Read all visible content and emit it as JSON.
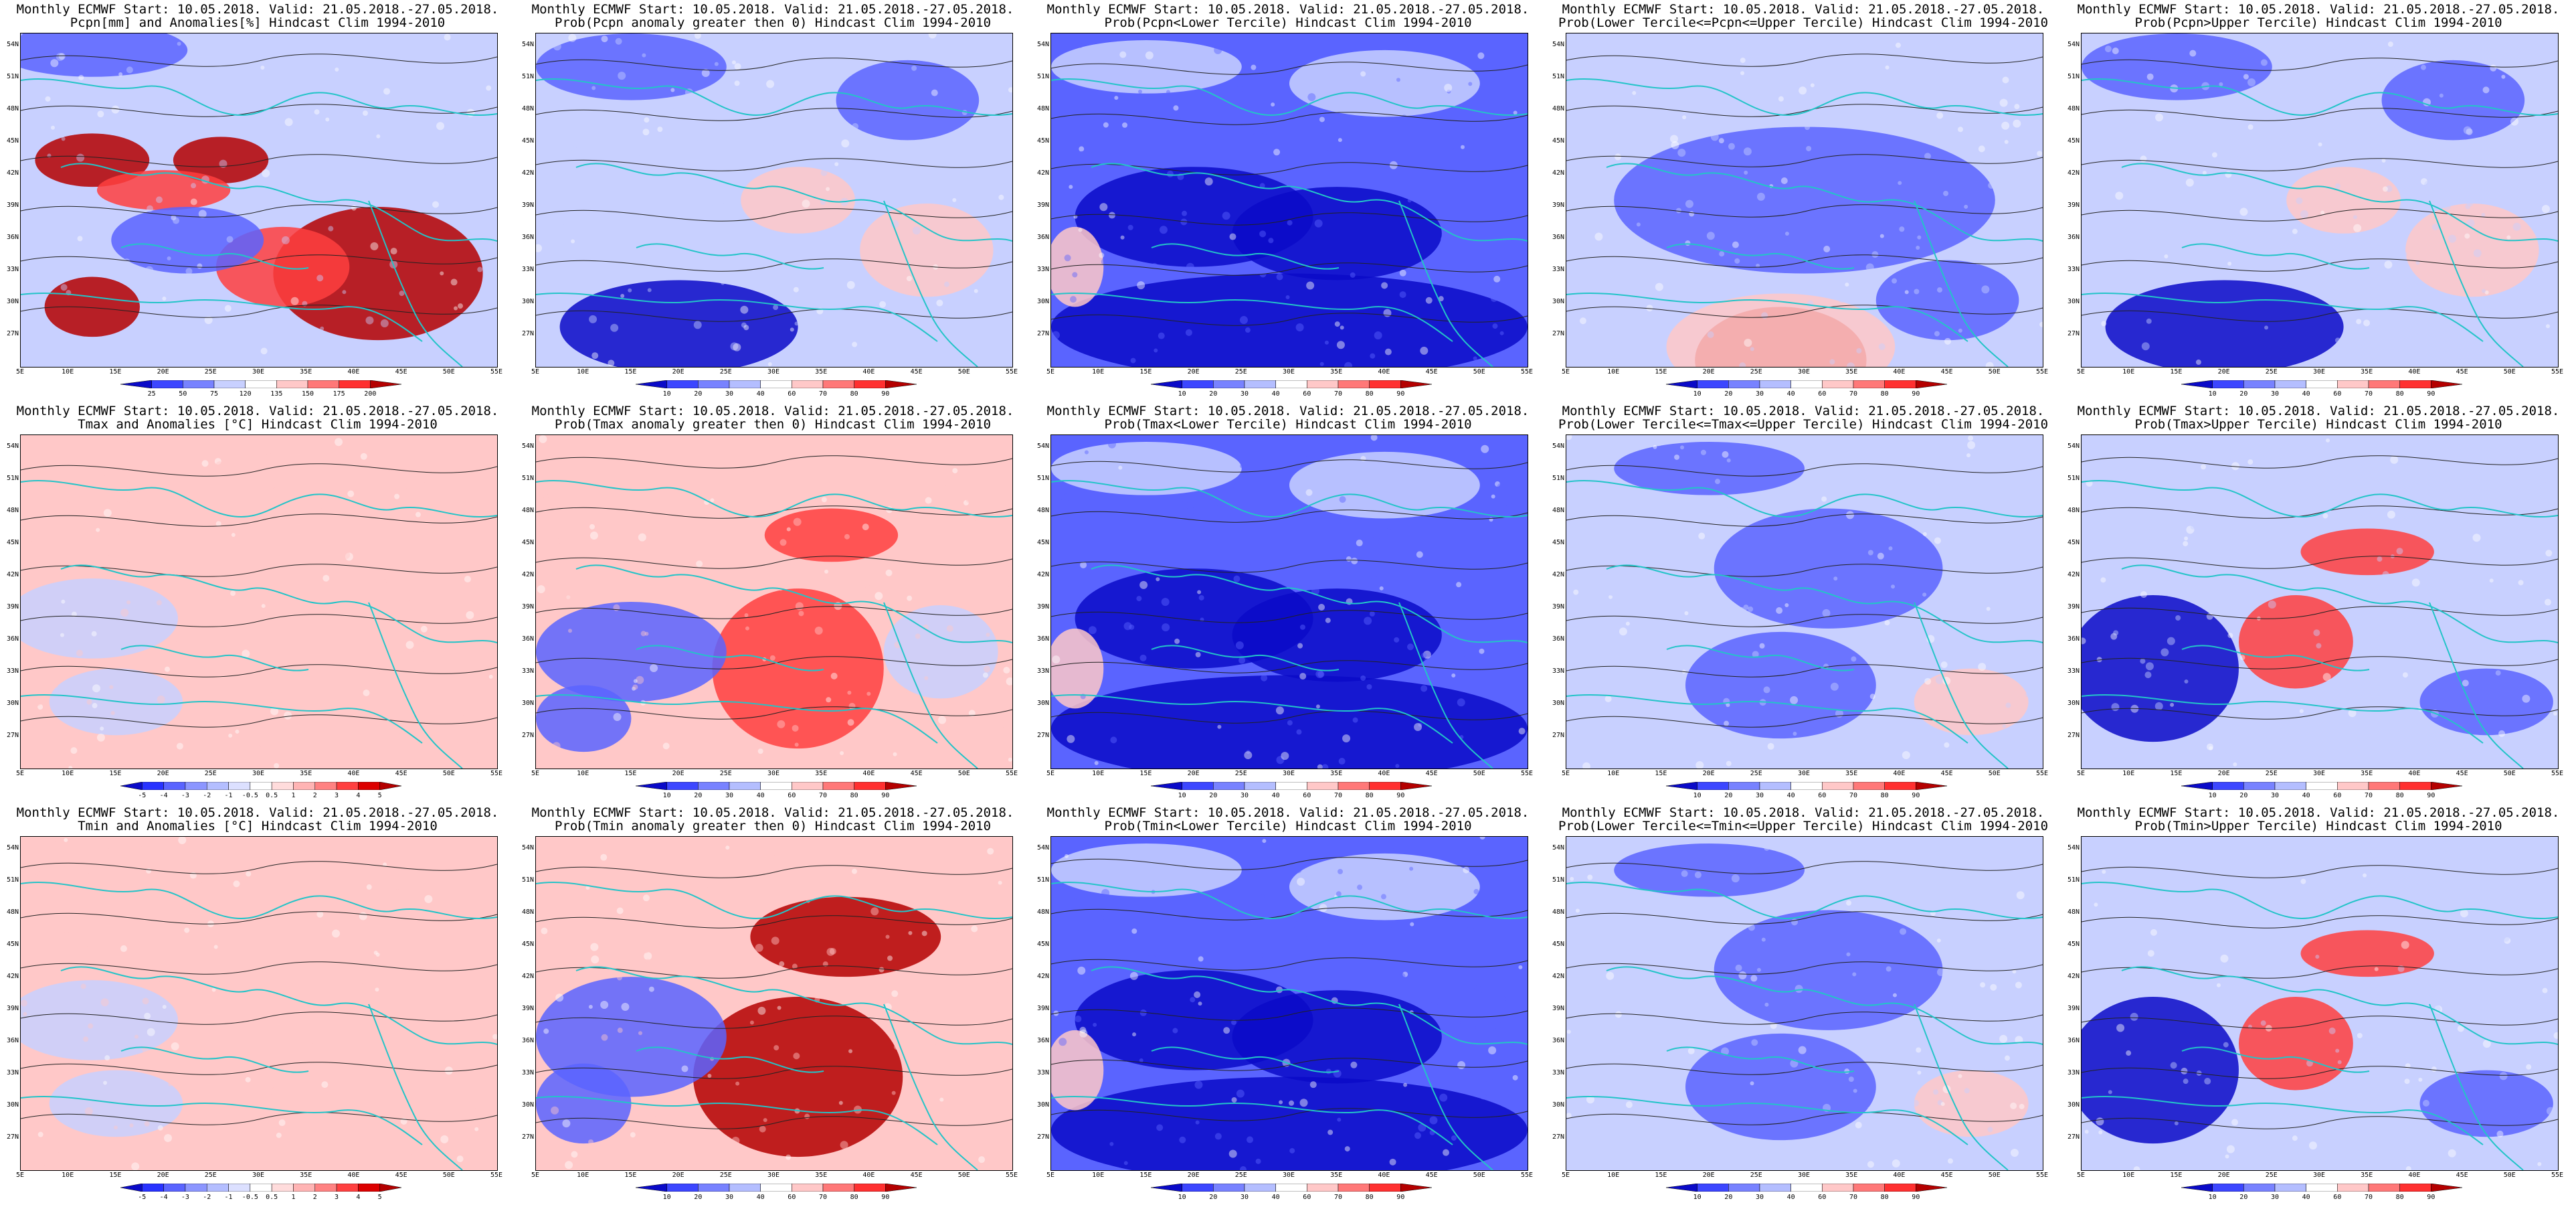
{
  "colors": {
    "frame": "#000000",
    "coast": "#23c4c8",
    "contour": "#222222",
    "blue_dark": "#0a0ac8",
    "blue_mid": "#5a64ff",
    "blue_light": "#c8d0ff",
    "red_dark": "#b40000",
    "red_mid": "#ff4040",
    "red_light": "#ffc8c8"
  },
  "axes": {
    "lat_labels": [
      "54N",
      "51N",
      "48N",
      "45N",
      "42N",
      "39N",
      "36N",
      "33N",
      "30N",
      "27N"
    ],
    "lon_labels": [
      "5E",
      "10E",
      "15E",
      "20E",
      "25E",
      "30E",
      "35E",
      "40E",
      "45E",
      "50E",
      "55E"
    ]
  },
  "colorbars": {
    "precip": {
      "labels": [
        "25",
        "50",
        "75",
        "120",
        "135",
        "150",
        "175",
        "200"
      ],
      "colors": [
        "#0a0ac8",
        "#3c46ff",
        "#7882ff",
        "#c8d0ff",
        "#ffffff",
        "#ffc8c8",
        "#ff7878",
        "#ff3030",
        "#b40000"
      ]
    },
    "prob": {
      "labels": [
        "10",
        "20",
        "30",
        "40",
        "60",
        "70",
        "80",
        "90"
      ],
      "colors": [
        "#0a0ac8",
        "#3c46ff",
        "#7882ff",
        "#b4beff",
        "#ffffff",
        "#ffc8c8",
        "#ff7878",
        "#ff3030",
        "#b40000"
      ]
    },
    "temp": {
      "labels": [
        "-5",
        "-4",
        "-3",
        "-2",
        "-1",
        "-0.5",
        "0.5",
        "1",
        "2",
        "3",
        "4",
        "5"
      ],
      "colors": [
        "#0a0ac8",
        "#2832ff",
        "#5a64ff",
        "#8c96ff",
        "#b4beff",
        "#dce0ff",
        "#ffffff",
        "#ffdcdc",
        "#ffb4b4",
        "#ff8282",
        "#ff4040",
        "#dc0000",
        "#b40000"
      ]
    }
  },
  "panels": [
    {
      "title1": "Monthly ECMWF Start: 10.05.2018. Valid: 21.05.2018.-27.05.2018.",
      "title2": "Pcpn[mm] and Anomalies[%] Hindcast Clim 1994-2010",
      "colorbar": "precip",
      "pattern": "precip_anom"
    },
    {
      "title1": "Monthly ECMWF Start: 10.05.2018. Valid: 21.05.2018.-27.05.2018.",
      "title2": "Prob(Pcpn anomaly greater then 0) Hindcast Clim 1994-2010",
      "colorbar": "prob",
      "pattern": "bluish"
    },
    {
      "title1": "Monthly ECMWF Start: 10.05.2018. Valid: 21.05.2018.-27.05.2018.",
      "title2": "Prob(Pcpn<Lower Tercile) Hindcast Clim 1994-2010",
      "colorbar": "prob",
      "pattern": "deep_blue"
    },
    {
      "title1": "Monthly ECMWF Start: 10.05.2018. Valid: 21.05.2018.-27.05.2018.",
      "title2": "Prob(Lower Tercile<=Pcpn<=Upper Tercile) Hindcast Clim 1994-2010",
      "colorbar": "prob",
      "pattern": "blue_red_south"
    },
    {
      "title1": "Monthly ECMWF Start: 10.05.2018. Valid: 21.05.2018.-27.05.2018.",
      "title2": "Prob(Pcpn>Upper Tercile) Hindcast Clim 1994-2010",
      "colorbar": "prob",
      "pattern": "bluish"
    },
    {
      "title1": "Monthly ECMWF Start: 10.05.2018. Valid: 21.05.2018.-27.05.2018.",
      "title2": "Tmax and Anomalies [°C] Hindcast Clim 1994-2010",
      "colorbar": "temp",
      "pattern": "light_red"
    },
    {
      "title1": "Monthly ECMWF Start: 10.05.2018. Valid: 21.05.2018.-27.05.2018.",
      "title2": "Prob(Tmax anomaly greater then 0) Hindcast Clim 1994-2010",
      "colorbar": "prob",
      "pattern": "red_east"
    },
    {
      "title1": "Monthly ECMWF Start: 10.05.2018. Valid: 21.05.2018.-27.05.2018.",
      "title2": "Prob(Tmax<Lower Tercile) Hindcast Clim 1994-2010",
      "colorbar": "prob",
      "pattern": "deep_blue"
    },
    {
      "title1": "Monthly ECMWF Start: 10.05.2018. Valid: 21.05.2018.-27.05.2018.",
      "title2": "Prob(Lower Tercile<=Tmax<=Upper Tercile) Hindcast Clim 1994-2010",
      "colorbar": "prob",
      "pattern": "mid_blue"
    },
    {
      "title1": "Monthly ECMWF Start: 10.05.2018. Valid: 21.05.2018.-27.05.2018.",
      "title2": "Prob(Tmax>Upper Tercile) Hindcast Clim 1994-2010",
      "colorbar": "prob",
      "pattern": "blue_west_red_east"
    },
    {
      "title1": "Monthly ECMWF Start: 10.05.2018. Valid: 21.05.2018.-27.05.2018.",
      "title2": "Tmin and Anomalies [°C] Hindcast Clim 1994-2010",
      "colorbar": "temp",
      "pattern": "light_red"
    },
    {
      "title1": "Monthly ECMWF Start: 10.05.2018. Valid: 21.05.2018.-27.05.2018.",
      "title2": "Prob(Tmin anomaly greater then 0) Hindcast Clim 1994-2010",
      "colorbar": "prob",
      "pattern": "red_east_strong"
    },
    {
      "title1": "Monthly ECMWF Start: 10.05.2018. Valid: 21.05.2018.-27.05.2018.",
      "title2": "Prob(Tmin<Lower Tercile) Hindcast Clim 1994-2010",
      "colorbar": "prob",
      "pattern": "deep_blue"
    },
    {
      "title1": "Monthly ECMWF Start: 10.05.2018. Valid: 21.05.2018.-27.05.2018.",
      "title2": "Prob(Lower Tercile<=Tmin<=Upper Tercile) Hindcast Clim 1994-2010",
      "colorbar": "prob",
      "pattern": "mid_blue"
    },
    {
      "title1": "Monthly ECMWF Start: 10.05.2018. Valid: 21.05.2018.-27.05.2018.",
      "title2": "Prob(Tmin>Upper Tercile) Hindcast Clim 1994-2010",
      "colorbar": "prob",
      "pattern": "blue_west_red_east"
    }
  ]
}
